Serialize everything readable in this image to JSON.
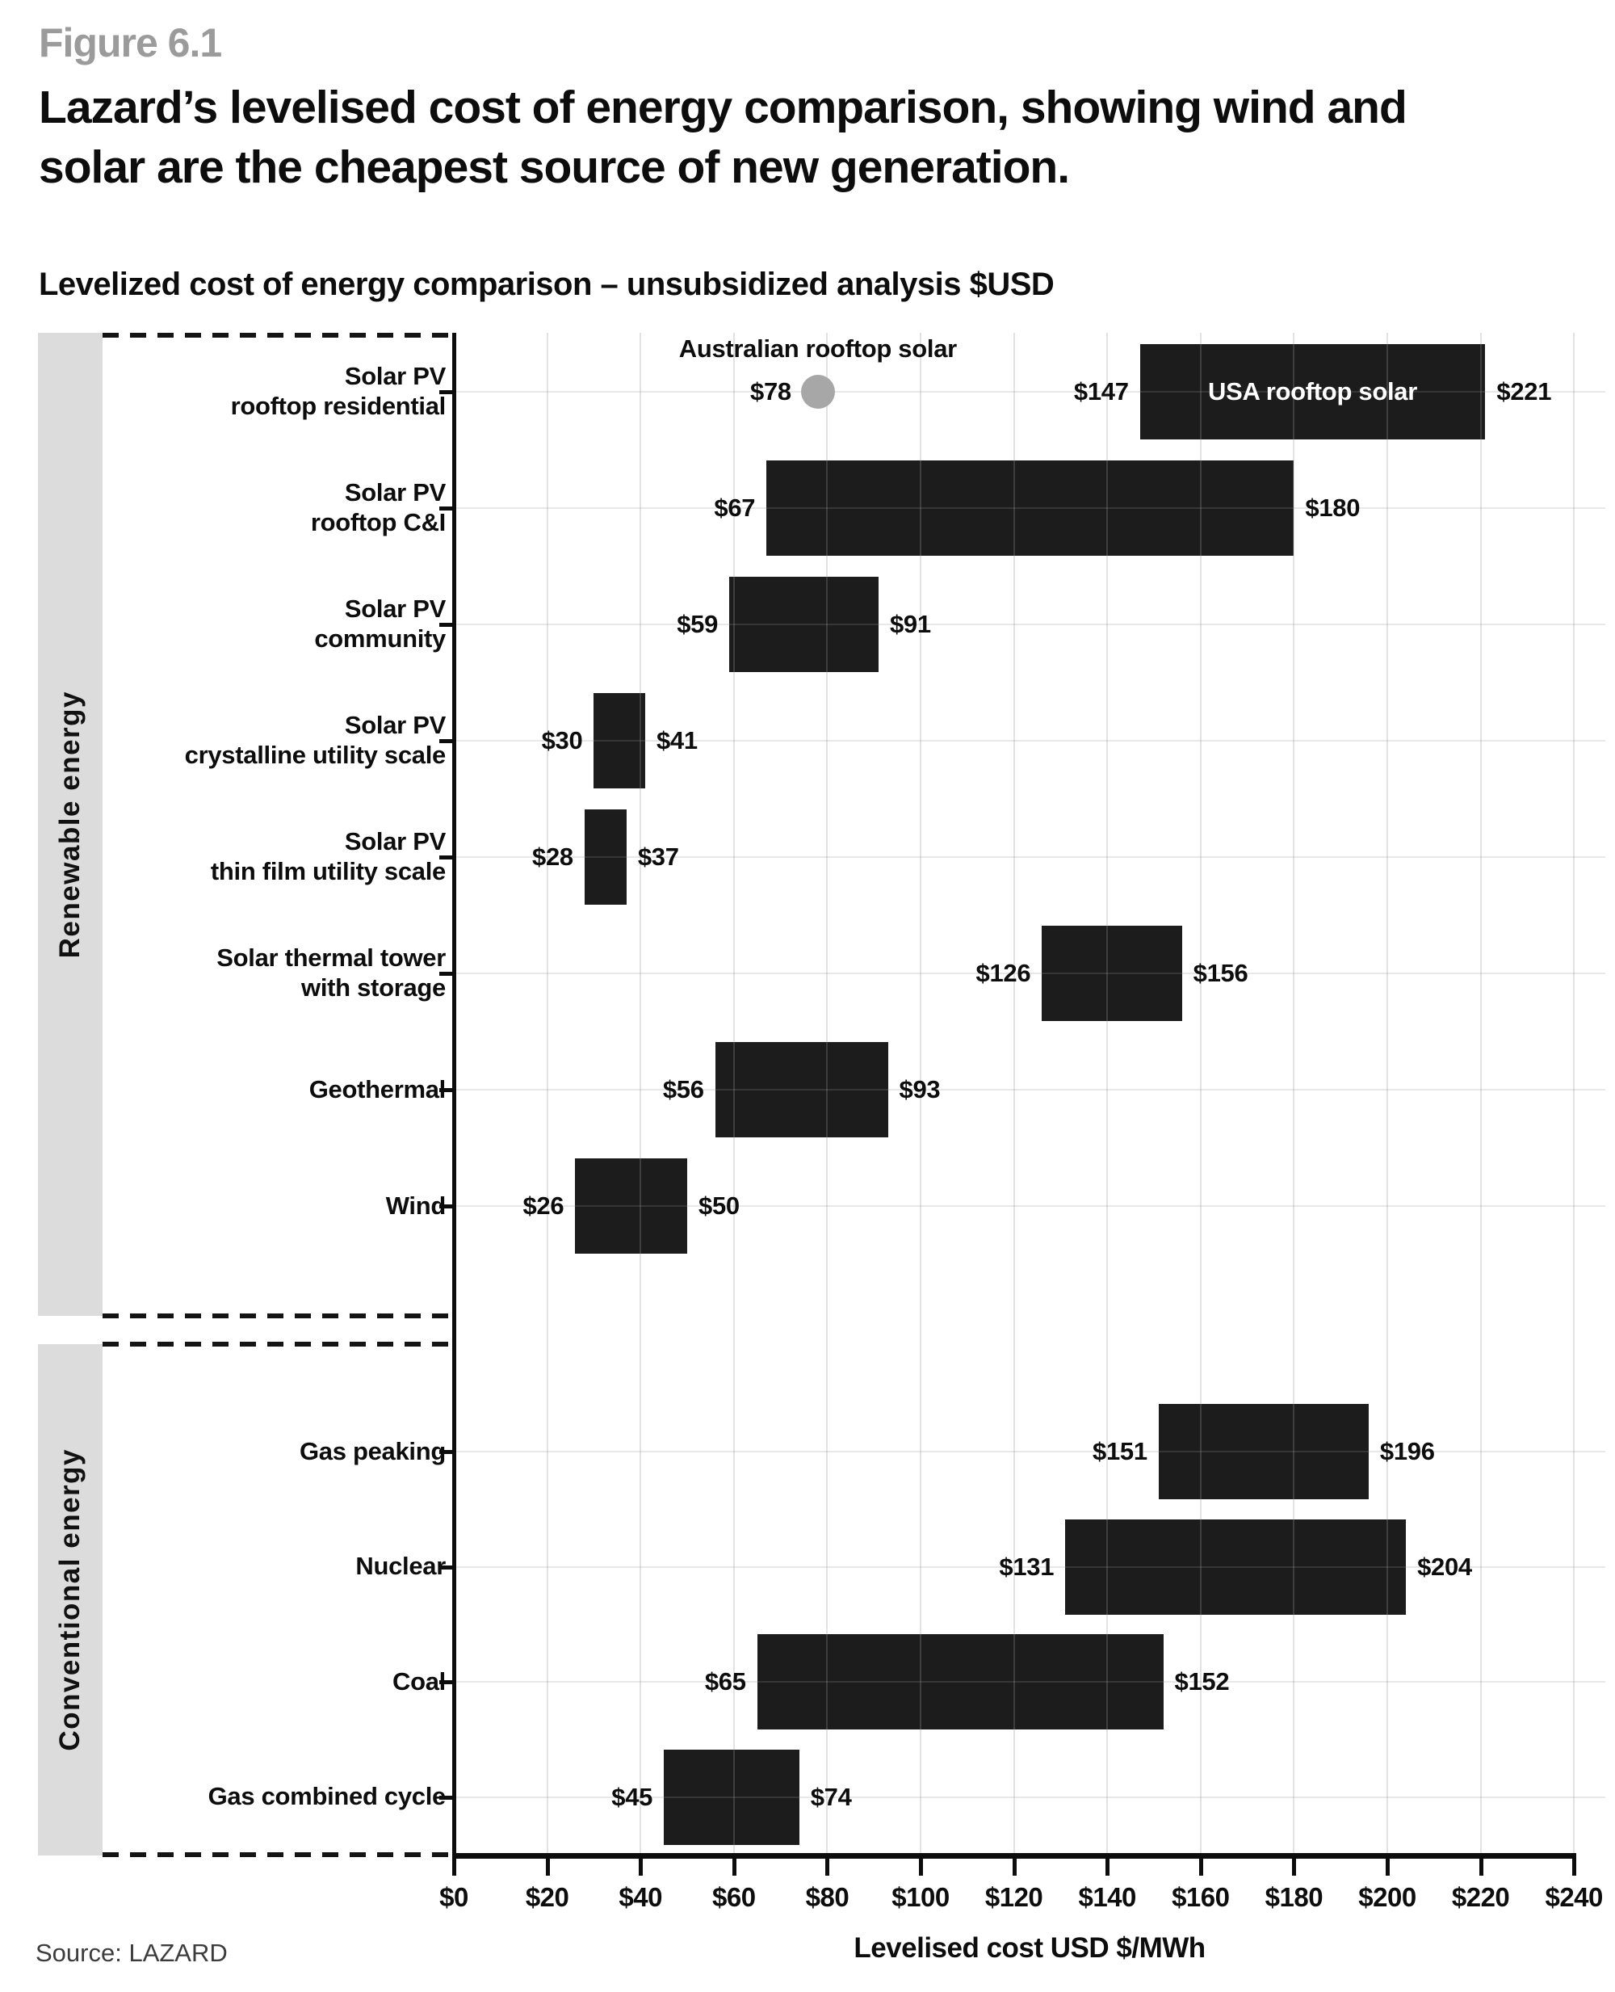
{
  "figure": {
    "number": "Figure 6.1",
    "title": "Lazard’s levelised cost of energy comparison, showing wind and solar are the cheapest source of new generation.",
    "subtitle": "Levelized cost of energy comparison – unsubsidized analysis $USD",
    "source": "Source: LAZARD"
  },
  "chart_data": {
    "type": "bar",
    "variant": "horizontal-range",
    "title": "Levelized cost of energy comparison – unsubsidized analysis $USD",
    "xlabel": "Levelised cost USD $/MWh",
    "ylabel": "",
    "xlim": [
      0,
      245
    ],
    "grid": true,
    "x_ticks": [
      "$0",
      "$20",
      "$40",
      "$60",
      "$80",
      "$100",
      "$120",
      "$140",
      "$160",
      "$180",
      "$200",
      "$220",
      "$240"
    ],
    "x_tick_values": [
      0,
      20,
      40,
      60,
      80,
      100,
      120,
      140,
      160,
      180,
      200,
      220,
      240
    ],
    "colors": {
      "bar": "#1c1c1c",
      "point": "#a7a7a7",
      "band": "#dcdcdc",
      "grid": "#d9d9d9"
    },
    "groups": [
      {
        "label": "Renewable energy",
        "rows": [
          {
            "label_lines": [
              "Solar PV",
              "rooftop residential"
            ],
            "min": 147,
            "max": 221,
            "min_label": "$147",
            "max_label": "$221",
            "bar_text": "USA rooftop solar",
            "point": {
              "value": 78,
              "value_label": "$78",
              "label": "Australian rooftop solar"
            }
          },
          {
            "label_lines": [
              "Solar PV",
              "rooftop C&I"
            ],
            "min": 67,
            "max": 180,
            "min_label": "$67",
            "max_label": "$180"
          },
          {
            "label_lines": [
              "Solar PV",
              "community"
            ],
            "min": 59,
            "max": 91,
            "min_label": "$59",
            "max_label": "$91"
          },
          {
            "label_lines": [
              "Solar PV",
              "crystalline utility scale"
            ],
            "min": 30,
            "max": 41,
            "min_label": "$30",
            "max_label": "$41"
          },
          {
            "label_lines": [
              "Solar PV",
              "thin film utility scale"
            ],
            "min": 28,
            "max": 37,
            "min_label": "$28",
            "max_label": "$37"
          },
          {
            "label_lines": [
              "Solar thermal tower",
              "with storage"
            ],
            "min": 126,
            "max": 156,
            "min_label": "$126",
            "max_label": "$156"
          },
          {
            "label_lines": [
              "Geothermal"
            ],
            "min": 56,
            "max": 93,
            "min_label": "$56",
            "max_label": "$93"
          },
          {
            "label_lines": [
              "Wind"
            ],
            "min": 26,
            "max": 50,
            "min_label": "$26",
            "max_label": "$50"
          }
        ]
      },
      {
        "label": "Conventional energy",
        "rows": [
          {
            "label_lines": [
              "Gas peaking"
            ],
            "min": 151,
            "max": 196,
            "min_label": "$151",
            "max_label": "$196"
          },
          {
            "label_lines": [
              "Nuclear"
            ],
            "min": 131,
            "max": 204,
            "min_label": "$131",
            "max_label": "$204"
          },
          {
            "label_lines": [
              "Coal"
            ],
            "min": 65,
            "max": 152,
            "min_label": "$65",
            "max_label": "$152"
          },
          {
            "label_lines": [
              "Gas combined cycle"
            ],
            "min": 45,
            "max": 74,
            "min_label": "$45",
            "max_label": "$74"
          }
        ]
      }
    ]
  }
}
